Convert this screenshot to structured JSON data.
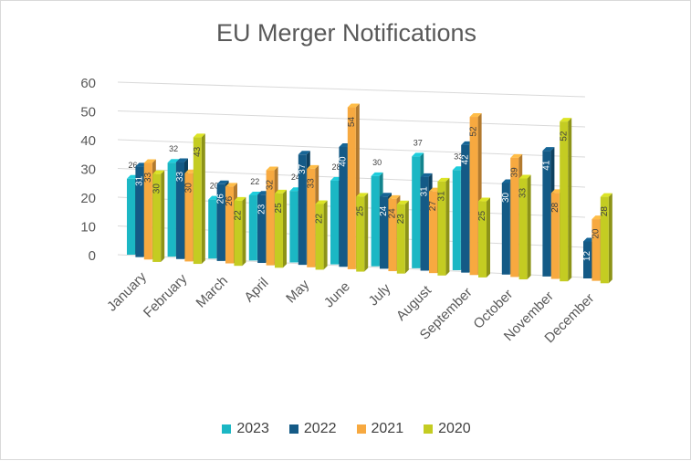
{
  "chart_data": {
    "type": "bar",
    "title": "EU Merger Notifications",
    "xlabel": "",
    "ylabel": "",
    "ylim": [
      0,
      60
    ],
    "yticks": [
      0,
      10,
      20,
      30,
      40,
      50,
      60
    ],
    "grid": true,
    "legend_position": "bottom",
    "categories": [
      "January",
      "February",
      "March",
      "April",
      "May",
      "June",
      "July",
      "August",
      "September",
      "October",
      "November",
      "December"
    ],
    "series": [
      {
        "name": "2023",
        "color": "#1bb7c4",
        "values": [
          26,
          32,
          20,
          22,
          24,
          28,
          30,
          37,
          33,
          null,
          null,
          null
        ]
      },
      {
        "name": "2022",
        "color": "#145a86",
        "values": [
          31,
          33,
          26,
          23,
          37,
          40,
          24,
          31,
          42,
          30,
          41,
          12
        ]
      },
      {
        "name": "2021",
        "color": "#f7a940",
        "values": [
          33,
          30,
          26,
          32,
          33,
          54,
          24,
          27,
          52,
          39,
          28,
          20
        ]
      },
      {
        "name": "2020",
        "color": "#c4cc22",
        "values": [
          30,
          43,
          22,
          25,
          22,
          25,
          23,
          31,
          25,
          33,
          52,
          28
        ]
      }
    ]
  }
}
